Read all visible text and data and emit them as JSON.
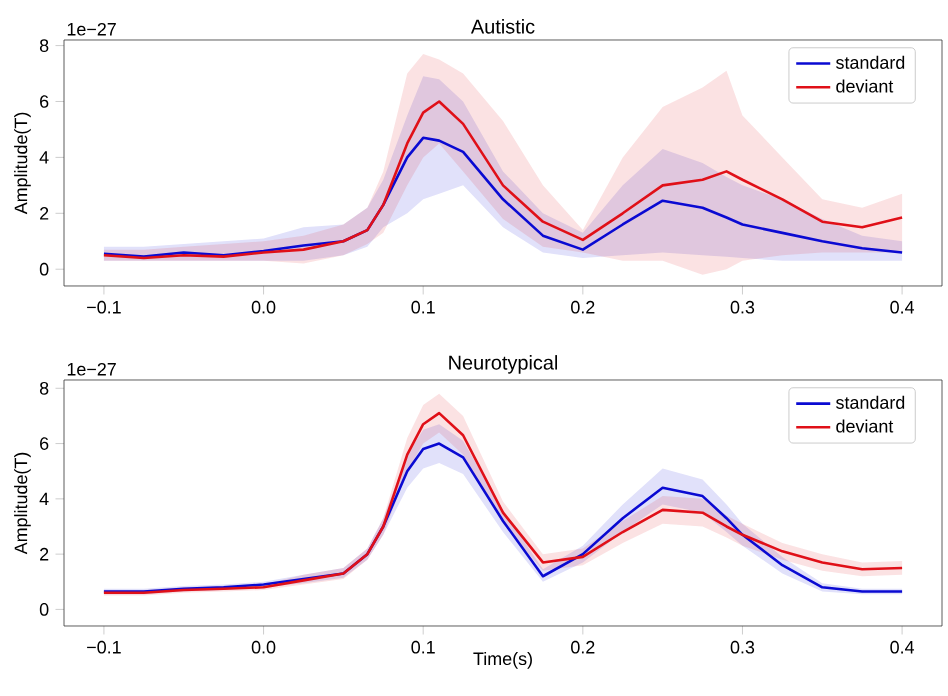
{
  "chart_data": [
    {
      "type": "line",
      "title": "Autistic",
      "ylabel": "Amplitude(T)",
      "annotations": [
        "1e−27"
      ],
      "legend": "top right",
      "x": [
        -0.1,
        -0.075,
        -0.05,
        -0.025,
        0,
        0.025,
        0.05,
        0.065,
        0.075,
        0.09,
        0.1,
        0.11,
        0.125,
        0.15,
        0.175,
        0.2,
        0.225,
        0.25,
        0.275,
        0.29,
        0.3,
        0.325,
        0.35,
        0.375,
        0.4
      ],
      "xlim": [
        -0.125,
        0.425
      ],
      "ylim": [
        -0.6,
        8.2
      ],
      "xticks": [
        {
          "value": -0.1,
          "label": "−0.1"
        },
        {
          "value": 0,
          "label": "0.0"
        },
        {
          "value": 0.1,
          "label": "0.1"
        },
        {
          "value": 0.2,
          "label": "0.2"
        },
        {
          "value": 0.3,
          "label": "0.3"
        },
        {
          "value": 0.4,
          "label": "0.4"
        }
      ],
      "yticks": [
        0,
        2,
        4,
        6,
        8
      ],
      "series": [
        {
          "name": "standard",
          "color": "#0a0ad2",
          "values": [
            0.55,
            0.45,
            0.6,
            0.5,
            0.65,
            0.85,
            1.0,
            1.4,
            2.3,
            4.0,
            4.7,
            4.6,
            4.2,
            2.5,
            1.2,
            0.7,
            1.6,
            2.45,
            2.2,
            1.85,
            1.6,
            1.3,
            1.0,
            0.75,
            0.6
          ],
          "lower": [
            0.3,
            0.3,
            0.3,
            0.3,
            0.3,
            0.3,
            0.5,
            0.8,
            1.5,
            2.0,
            2.5,
            2.7,
            3.0,
            1.5,
            0.6,
            0.4,
            0.5,
            0.6,
            0.5,
            0.45,
            0.4,
            0.3,
            0.3,
            0.3,
            0.3
          ],
          "upper": [
            0.8,
            0.8,
            0.9,
            1.0,
            1.1,
            1.5,
            1.6,
            2.2,
            3.2,
            5.5,
            6.9,
            6.8,
            6.0,
            3.5,
            2.0,
            1.3,
            3.0,
            4.3,
            3.8,
            3.3,
            3.0,
            2.5,
            1.8,
            1.2,
            1.0
          ]
        },
        {
          "name": "deviant",
          "color": "#e01018",
          "values": [
            0.5,
            0.4,
            0.5,
            0.45,
            0.6,
            0.7,
            1.0,
            1.4,
            2.3,
            4.5,
            5.6,
            6.0,
            5.2,
            3.0,
            1.7,
            1.05,
            2.0,
            3.0,
            3.2,
            3.5,
            3.2,
            2.5,
            1.7,
            1.5,
            1.85
          ],
          "lower": [
            0.3,
            0.3,
            0.3,
            0.3,
            0.3,
            0.2,
            0.5,
            0.9,
            1.3,
            3.0,
            4.0,
            4.5,
            3.5,
            1.8,
            0.8,
            0.6,
            0.3,
            0.3,
            -0.2,
            0.0,
            0.3,
            0.5,
            0.6,
            0.6,
            0.6
          ],
          "upper": [
            0.7,
            0.7,
            0.8,
            0.9,
            1.0,
            1.2,
            1.6,
            2.2,
            3.5,
            7.0,
            7.7,
            7.5,
            7.0,
            5.3,
            3.0,
            1.4,
            4.0,
            5.8,
            6.5,
            7.1,
            5.5,
            4.0,
            2.5,
            2.2,
            2.7
          ]
        }
      ]
    },
    {
      "type": "line",
      "title": "Neurotypical",
      "xlabel": "Time(s)",
      "ylabel": "Amplitude(T)",
      "annotations": [
        "1e−27"
      ],
      "legend": "top right",
      "x": [
        -0.1,
        -0.075,
        -0.05,
        -0.025,
        0,
        0.025,
        0.05,
        0.065,
        0.075,
        0.09,
        0.1,
        0.11,
        0.125,
        0.15,
        0.175,
        0.2,
        0.225,
        0.25,
        0.275,
        0.29,
        0.3,
        0.325,
        0.35,
        0.375,
        0.4
      ],
      "xlim": [
        -0.125,
        0.425
      ],
      "ylim": [
        -0.6,
        8.3
      ],
      "xticks": [
        {
          "value": -0.1,
          "label": "−0.1"
        },
        {
          "value": 0,
          "label": "0.0"
        },
        {
          "value": 0.1,
          "label": "0.1"
        },
        {
          "value": 0.2,
          "label": "0.2"
        },
        {
          "value": 0.3,
          "label": "0.3"
        },
        {
          "value": 0.4,
          "label": "0.4"
        }
      ],
      "yticks": [
        0,
        2,
        4,
        6,
        8
      ],
      "series": [
        {
          "name": "standard",
          "color": "#0a0ad2",
          "values": [
            0.65,
            0.65,
            0.75,
            0.8,
            0.9,
            1.1,
            1.3,
            2.0,
            3.0,
            5.0,
            5.8,
            6.0,
            5.5,
            3.2,
            1.2,
            2.0,
            3.3,
            4.4,
            4.1,
            3.3,
            2.7,
            1.6,
            0.8,
            0.65,
            0.65
          ],
          "lower": [
            0.55,
            0.55,
            0.65,
            0.7,
            0.8,
            0.95,
            1.15,
            1.8,
            2.7,
            4.4,
            5.1,
            5.3,
            4.9,
            2.8,
            1.0,
            1.7,
            2.8,
            3.8,
            3.5,
            2.8,
            2.3,
            1.3,
            0.65,
            0.55,
            0.55
          ],
          "upper": [
            0.75,
            0.75,
            0.85,
            0.9,
            1.0,
            1.25,
            1.5,
            2.2,
            3.3,
            5.6,
            6.5,
            6.7,
            6.1,
            3.6,
            1.45,
            2.3,
            3.8,
            5.1,
            4.7,
            3.8,
            3.1,
            1.9,
            0.95,
            0.75,
            0.75
          ]
        },
        {
          "name": "deviant",
          "color": "#e01018",
          "values": [
            0.6,
            0.6,
            0.7,
            0.75,
            0.8,
            1.05,
            1.3,
            2.0,
            3.0,
            5.6,
            6.7,
            7.1,
            6.3,
            3.5,
            1.7,
            1.9,
            2.8,
            3.6,
            3.5,
            3.0,
            2.7,
            2.1,
            1.7,
            1.45,
            1.5
          ],
          "lower": [
            0.5,
            0.5,
            0.6,
            0.65,
            0.7,
            0.9,
            1.1,
            1.8,
            2.7,
            5.0,
            6.0,
            6.4,
            5.6,
            3.1,
            1.4,
            1.6,
            2.4,
            3.1,
            3.0,
            2.6,
            2.3,
            1.8,
            1.4,
            1.2,
            1.25
          ],
          "upper": [
            0.7,
            0.7,
            0.8,
            0.85,
            0.9,
            1.25,
            1.5,
            2.2,
            3.3,
            6.2,
            7.4,
            7.8,
            7.0,
            3.9,
            2.0,
            2.2,
            3.2,
            4.1,
            4.0,
            3.4,
            3.1,
            2.4,
            2.0,
            1.7,
            1.75
          ]
        }
      ]
    }
  ]
}
